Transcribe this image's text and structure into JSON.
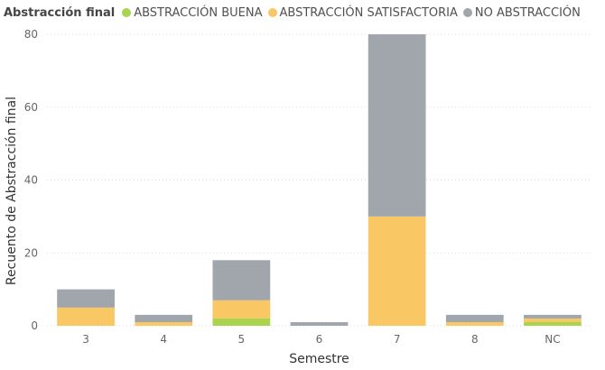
{
  "chart_data": {
    "type": "bar",
    "stacked": true,
    "title": "",
    "legend": {
      "title": "Abstracción final",
      "position": "top-left"
    },
    "categories": [
      "3",
      "4",
      "5",
      "6",
      "7",
      "8",
      "NC"
    ],
    "series": [
      {
        "name": "ABSTRACCIÓN BUENA",
        "color": "#A8D44E",
        "values": [
          0,
          0,
          2,
          0,
          0,
          0,
          1
        ]
      },
      {
        "name": "ABSTRACCIÓN SATISFACTORIA",
        "color": "#F9C764",
        "values": [
          5,
          1,
          5,
          0,
          30,
          1,
          1
        ]
      },
      {
        "name": "NO ABSTRACCIÓN",
        "color": "#A0A6AB",
        "values": [
          5,
          2,
          11,
          1,
          50,
          2,
          1
        ]
      }
    ],
    "xlabel": "Semestre",
    "ylabel": "Recuento de Abstracción final",
    "ylim": [
      0,
      80
    ],
    "yticks": [
      0,
      20,
      40,
      60,
      80
    ],
    "grid": true
  }
}
